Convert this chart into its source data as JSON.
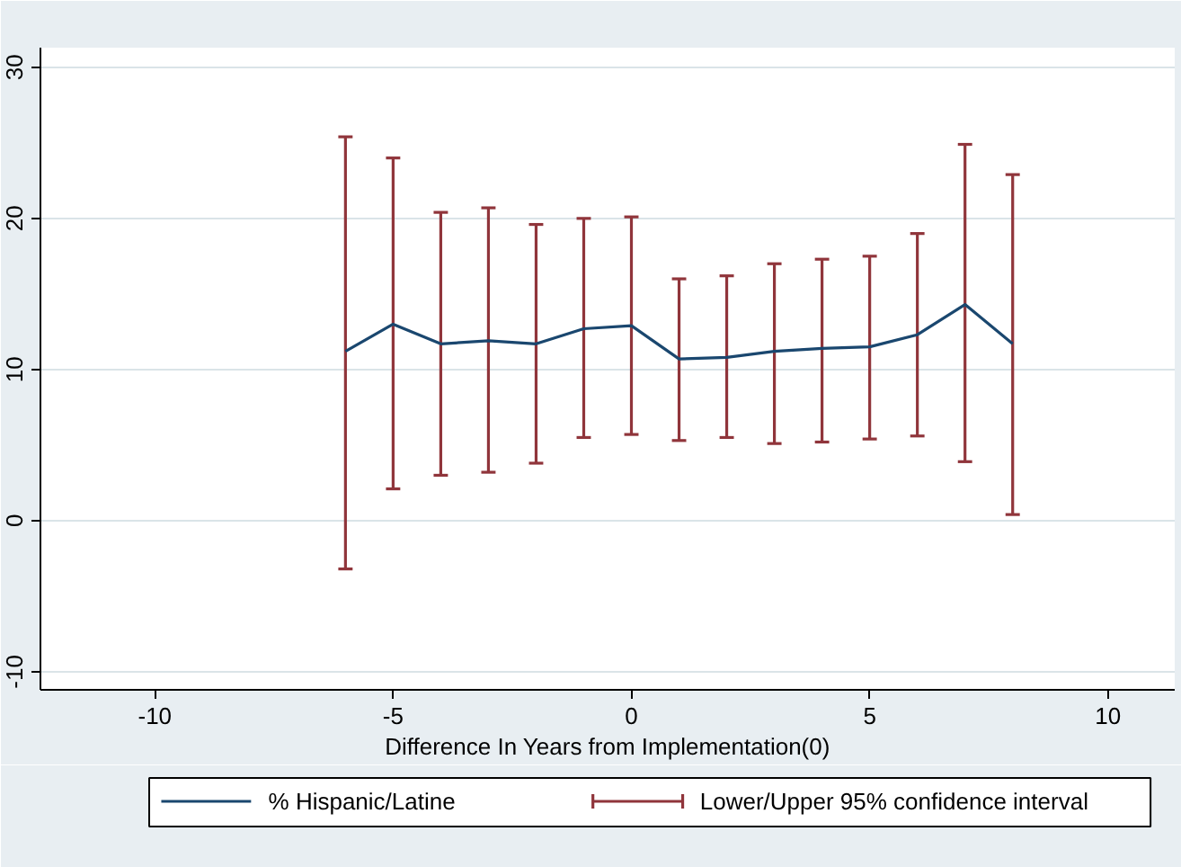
{
  "chart_data": {
    "type": "line",
    "xlabel": "Difference In Years from Implementation(0)",
    "x": [
      -6,
      -5,
      -4,
      -3,
      -2,
      -1,
      0,
      1,
      2,
      3,
      4,
      5,
      6,
      7,
      8
    ],
    "series": [
      {
        "name": "% Hispanic/Latine",
        "color": "#1a476f",
        "values": [
          11.2,
          13.0,
          11.7,
          11.9,
          11.7,
          12.7,
          12.9,
          10.7,
          10.8,
          11.2,
          11.4,
          11.5,
          12.3,
          14.3,
          11.7
        ],
        "errors": [
          [
            -3.2,
            25.4
          ],
          [
            2.1,
            24.0
          ],
          [
            3.0,
            20.4
          ],
          [
            3.2,
            20.7
          ],
          [
            3.8,
            19.6
          ],
          [
            5.5,
            20.0
          ],
          [
            5.7,
            20.1
          ],
          [
            5.3,
            16.0
          ],
          [
            5.5,
            16.2
          ],
          [
            5.1,
            17.0
          ],
          [
            5.2,
            17.3
          ],
          [
            5.4,
            17.5
          ],
          [
            5.6,
            19.0
          ],
          [
            3.9,
            24.9
          ],
          [
            0.4,
            22.9
          ]
        ]
      }
    ],
    "annotations": [
      "Lower/Upper 95% confidence interval"
    ],
    "xlim": [
      -12.4,
      11.4
    ],
    "ylim": [
      -11.2,
      31.3
    ],
    "xticks": [
      -10,
      -5,
      0,
      5,
      10
    ],
    "yticks": [
      -10,
      0,
      10,
      20,
      30
    ],
    "grid": "y",
    "legend": "bottom",
    "marker": "none",
    "line_style": "solid"
  }
}
